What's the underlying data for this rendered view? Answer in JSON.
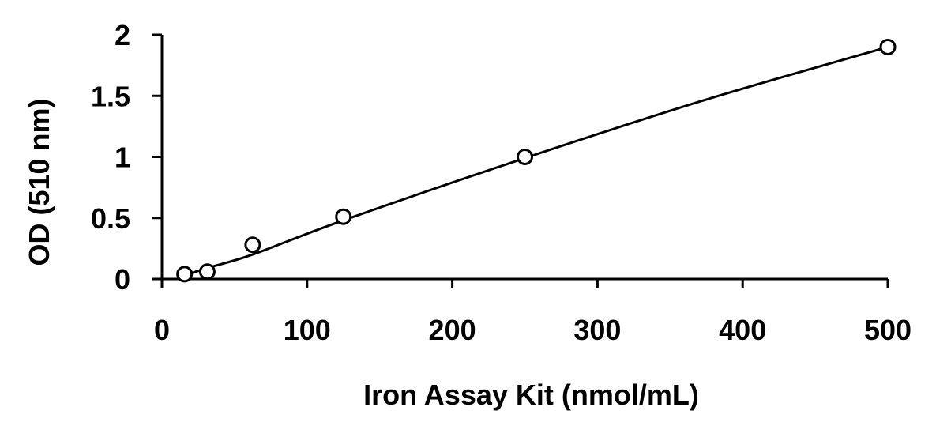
{
  "chart_data": {
    "type": "scatter",
    "title": "",
    "xlabel": "Iron Assay Kit (nmol/mL)",
    "ylabel": "OD (510 nm)",
    "xlim": [
      0,
      500
    ],
    "ylim": [
      0,
      2
    ],
    "x_ticks": [
      0,
      100,
      200,
      300,
      400,
      500
    ],
    "y_ticks": [
      0,
      0.5,
      1,
      1.5,
      2
    ],
    "x_tick_labels": [
      "0",
      "100",
      "200",
      "300",
      "400",
      "500"
    ],
    "y_tick_labels": [
      "0",
      "0.5",
      "1",
      "1.5",
      "2"
    ],
    "grid": false,
    "legend": "none",
    "marker": "open-circle",
    "series": [
      {
        "x": [
          15.6,
          31.25,
          62.5,
          125,
          250,
          500
        ],
        "y": [
          0.04,
          0.06,
          0.28,
          0.51,
          1.0,
          1.9
        ]
      }
    ],
    "trendline": {
      "type": "polynomial",
      "x": [
        15.6,
        31.25,
        62.5,
        125,
        250,
        375,
        500
      ],
      "y": [
        0.03,
        0.09,
        0.2,
        0.48,
        0.99,
        1.47,
        1.9
      ]
    },
    "colors": {
      "line": "#000000",
      "marker_stroke": "#000000",
      "marker_fill": "#ffffff"
    }
  }
}
